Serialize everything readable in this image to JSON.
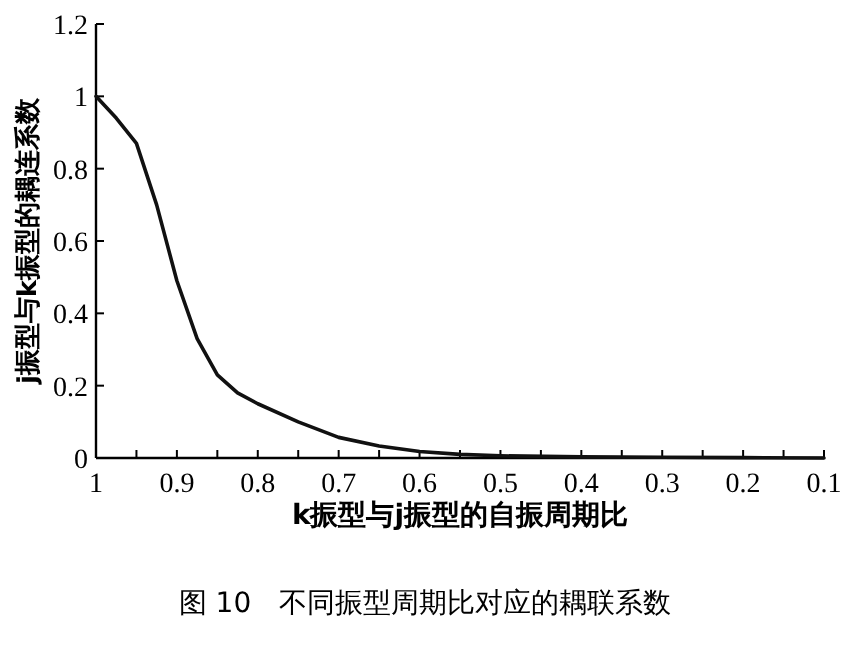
{
  "chart_data": {
    "type": "line",
    "title": "图 10　不同振型周期比对应的耦联系数",
    "xlabel": "k振型与j振型的自振周期比",
    "ylabel": "j振型与k振型的耦连系数",
    "x": [
      1,
      0.975,
      0.95,
      0.925,
      0.9,
      0.875,
      0.85,
      0.825,
      0.8,
      0.75,
      0.7,
      0.65,
      0.6,
      0.55,
      0.5,
      0.4,
      0.3,
      0.2,
      0.1
    ],
    "series": [
      {
        "color": "#111111",
        "values": [
          1,
          0.94,
          0.87,
          0.7,
          0.49,
          0.33,
          0.23,
          0.18,
          0.15,
          0.1,
          0.057,
          0.033,
          0.018,
          0.01,
          0.006,
          0.003,
          0.002,
          0.001,
          0
        ]
      }
    ],
    "xlim": [
      1,
      0.1
    ],
    "ylim": [
      0,
      1.2
    ],
    "xticks": [
      1,
      {
        "value": 0.95,
        "label": null
      },
      0.9,
      {
        "value": 0.85,
        "label": null
      },
      0.8,
      {
        "value": 0.75,
        "label": null
      },
      0.7,
      {
        "value": 0.65,
        "label": null
      },
      0.6,
      {
        "value": 0.55,
        "label": null
      },
      0.5,
      {
        "value": 0.45,
        "label": null
      },
      0.4,
      {
        "value": 0.35,
        "label": null
      },
      0.3,
      {
        "value": 0.25,
        "label": null
      },
      0.2,
      {
        "value": 0.15,
        "label": null
      },
      0.1
    ],
    "yticks": [
      0,
      0.2,
      0.4,
      0.6,
      0.8,
      1,
      1.2
    ],
    "grid": false,
    "marker": "none",
    "line_style": "solid"
  }
}
